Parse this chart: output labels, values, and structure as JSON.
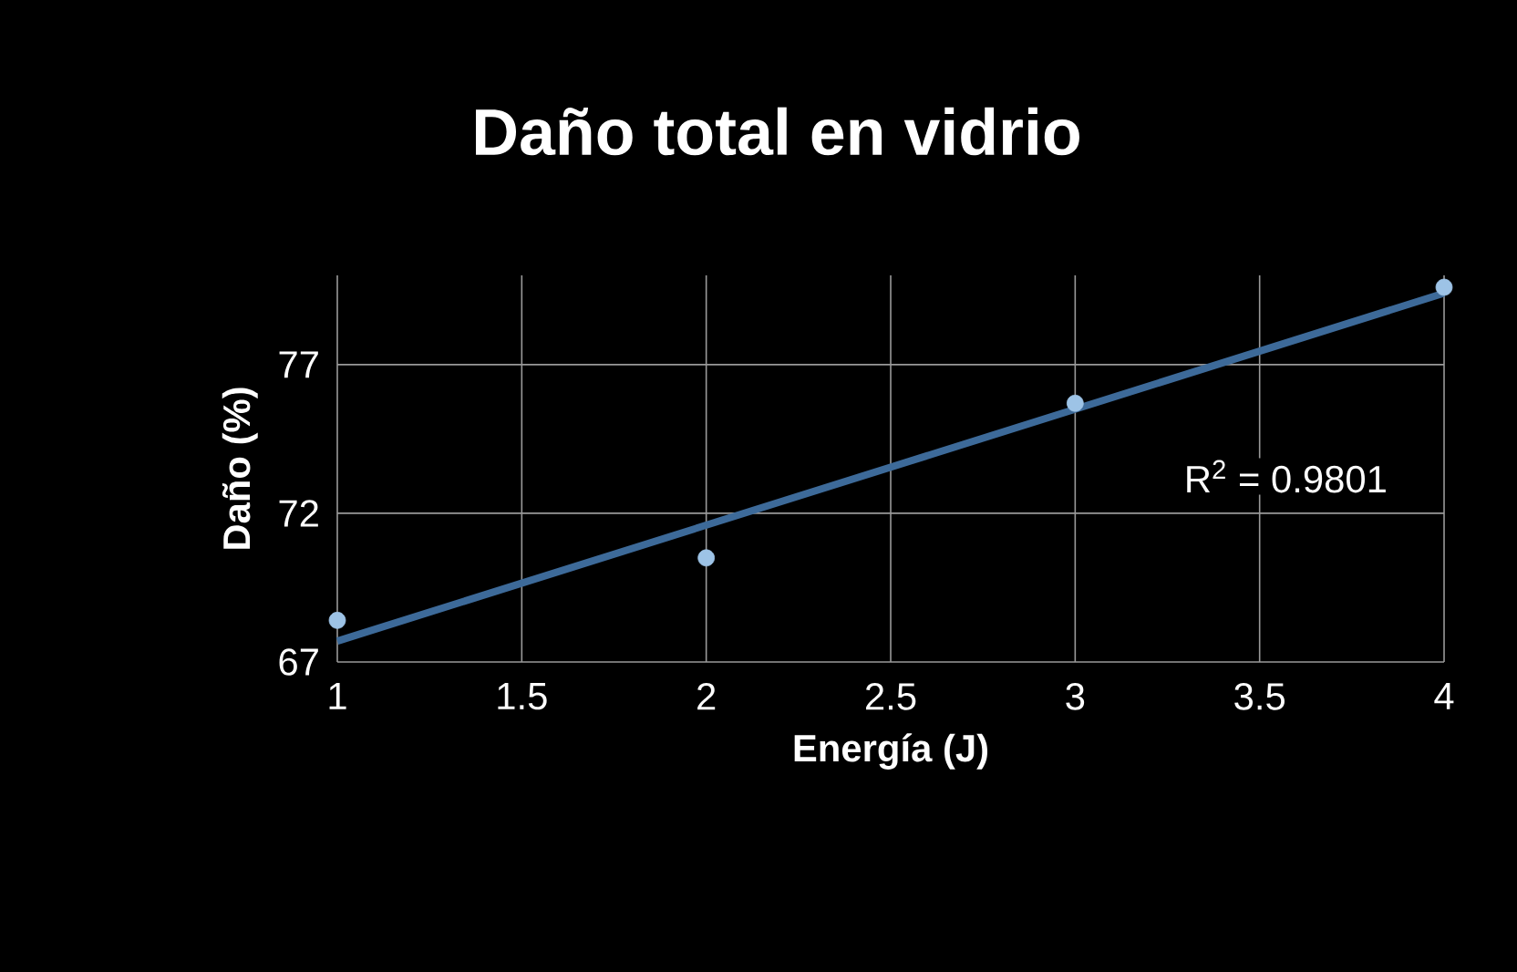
{
  "chart_data": {
    "type": "scatter",
    "title": "Daño total en vidrio",
    "xlabel": "Energía (J)",
    "ylabel": "Daño (%)",
    "marker": "circle",
    "series": [
      {
        "color": "#9dc3e6",
        "x": [
          1,
          2,
          3,
          4
        ],
        "values": [
          68.4,
          70.5,
          75.7,
          79.6
        ]
      },
      {
        "type": "line",
        "color": "#3d6a99",
        "x": [
          1,
          4
        ],
        "values": [
          67.7,
          79.4
        ],
        "marker": "none"
      }
    ],
    "xlim": [
      1,
      4
    ],
    "xticks": [
      1,
      1.5,
      2,
      2.5,
      3,
      3.5,
      4
    ],
    "ylim": [
      67,
      80
    ],
    "yticks": [
      67,
      72,
      77
    ],
    "grid": true,
    "annotations": [
      "R$^{2}$ = 0.9801"
    ]
  }
}
